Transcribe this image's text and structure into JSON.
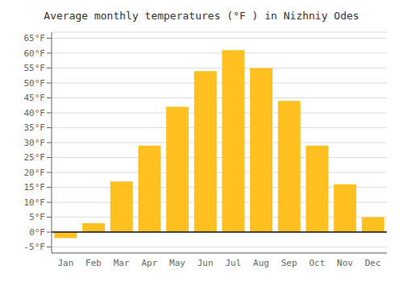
{
  "chart_data": {
    "type": "bar",
    "title": "Average monthly temperatures (°F ) in Nizhniy Odes",
    "categories": [
      "Jan",
      "Feb",
      "Mar",
      "Apr",
      "May",
      "Jun",
      "Jul",
      "Aug",
      "Sep",
      "Oct",
      "Nov",
      "Dec"
    ],
    "values": [
      -2,
      3,
      17,
      29,
      42,
      54,
      61,
      55,
      44,
      29,
      16,
      5
    ],
    "color": "#FFC020",
    "ylim": [
      -7,
      67
    ],
    "yticks": [
      {
        "value": -5,
        "label": "-5°F"
      },
      {
        "value": 0,
        "label": "0°F"
      },
      {
        "value": 5,
        "label": "5°F"
      },
      {
        "value": 10,
        "label": "10°F"
      },
      {
        "value": 15,
        "label": "15°F"
      },
      {
        "value": 20,
        "label": "20°F"
      },
      {
        "value": 25,
        "label": "25°F"
      },
      {
        "value": 30,
        "label": "30°F"
      },
      {
        "value": 35,
        "label": "35°F"
      },
      {
        "value": 40,
        "label": "40°F"
      },
      {
        "value": 45,
        "label": "45°F"
      },
      {
        "value": 50,
        "label": "50°F"
      },
      {
        "value": 55,
        "label": "55°F"
      },
      {
        "value": 60,
        "label": "60°F"
      },
      {
        "value": 65,
        "label": "65°F"
      }
    ],
    "grid": true
  }
}
